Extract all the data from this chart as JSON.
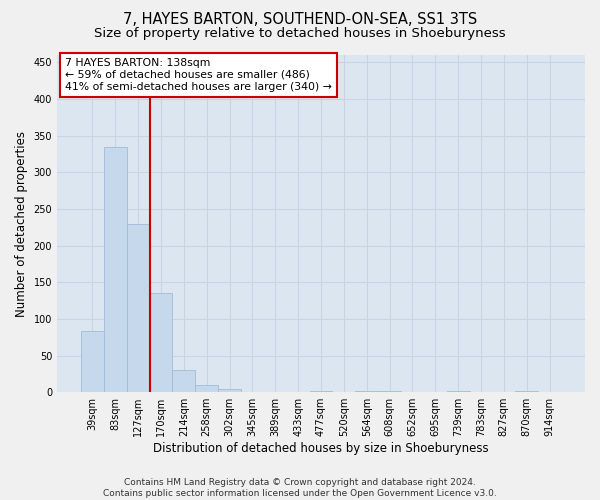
{
  "title": "7, HAYES BARTON, SOUTHEND-ON-SEA, SS1 3TS",
  "subtitle": "Size of property relative to detached houses in Shoeburyness",
  "xlabel": "Distribution of detached houses by size in Shoeburyness",
  "ylabel": "Number of detached properties",
  "footer_line1": "Contains HM Land Registry data © Crown copyright and database right 2024.",
  "footer_line2": "Contains public sector information licensed under the Open Government Licence v3.0.",
  "categories": [
    "39sqm",
    "83sqm",
    "127sqm",
    "170sqm",
    "214sqm",
    "258sqm",
    "302sqm",
    "345sqm",
    "389sqm",
    "433sqm",
    "477sqm",
    "520sqm",
    "564sqm",
    "608sqm",
    "652sqm",
    "695sqm",
    "739sqm",
    "783sqm",
    "827sqm",
    "870sqm",
    "914sqm"
  ],
  "values": [
    83,
    335,
    230,
    135,
    30,
    10,
    5,
    0,
    0,
    0,
    2,
    0,
    1,
    1,
    0,
    0,
    1,
    0,
    0,
    1,
    0
  ],
  "bar_color": "#c5d8ec",
  "bar_edge_color": "#a0bcd8",
  "property_line_x": 2.5,
  "property_line_color": "#cc0000",
  "annotation_text_line1": "7 HAYES BARTON: 138sqm",
  "annotation_text_line2": "← 59% of detached houses are smaller (486)",
  "annotation_text_line3": "41% of semi-detached houses are larger (340) →",
  "annotation_box_color": "#cc0000",
  "annotation_bg_color": "#ffffff",
  "ylim": [
    0,
    460
  ],
  "yticks": [
    0,
    50,
    100,
    150,
    200,
    250,
    300,
    350,
    400,
    450
  ],
  "grid_color": "#c8d4e4",
  "bg_color": "#dce6f0",
  "fig_bg_color": "#f0f0f0",
  "title_fontsize": 10.5,
  "subtitle_fontsize": 9.5,
  "tick_fontsize": 7,
  "ylabel_fontsize": 8.5,
  "xlabel_fontsize": 8.5,
  "footer_fontsize": 6.5,
  "annotation_fontsize": 7.8
}
